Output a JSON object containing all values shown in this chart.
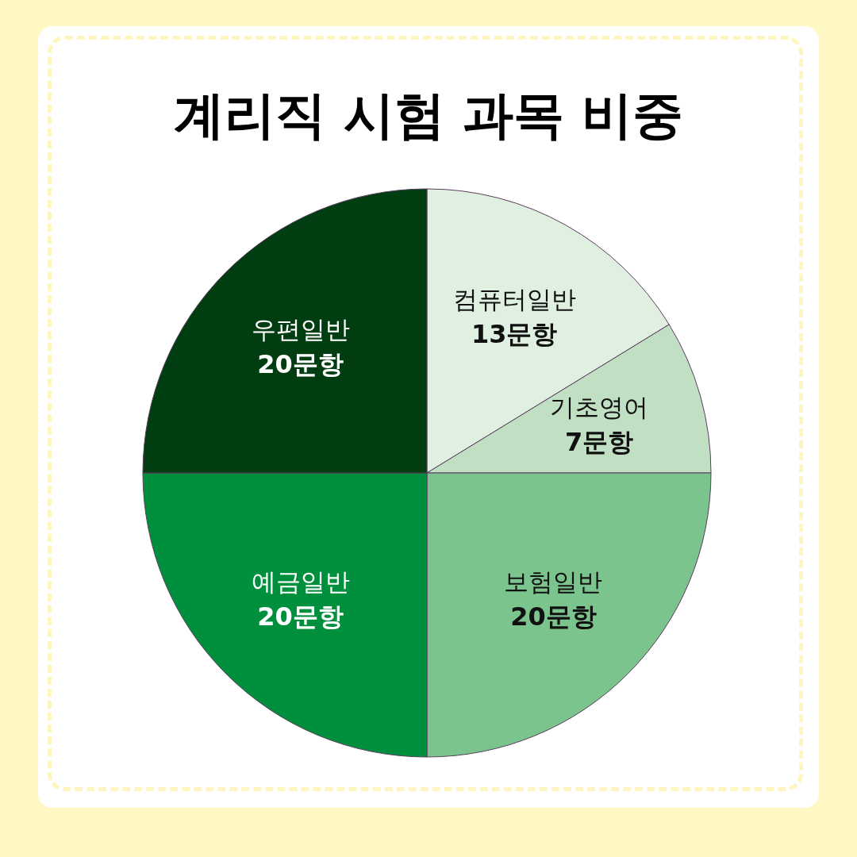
{
  "chart_data": {
    "type": "pie",
    "title": "계리직 시험 과목 비중",
    "categories": [
      "컴퓨터일반",
      "기초영어",
      "보험일반",
      "예금일반",
      "우편일반"
    ],
    "values": [
      13,
      7,
      20,
      20,
      20
    ],
    "colors": [
      "#dff0e1",
      "#c0dfc3",
      "#7cc48d",
      "#008f3c",
      "#003d11"
    ],
    "value_labels": [
      "13문항",
      "7문항",
      "20문항",
      "20문항",
      "20문항"
    ]
  }
}
